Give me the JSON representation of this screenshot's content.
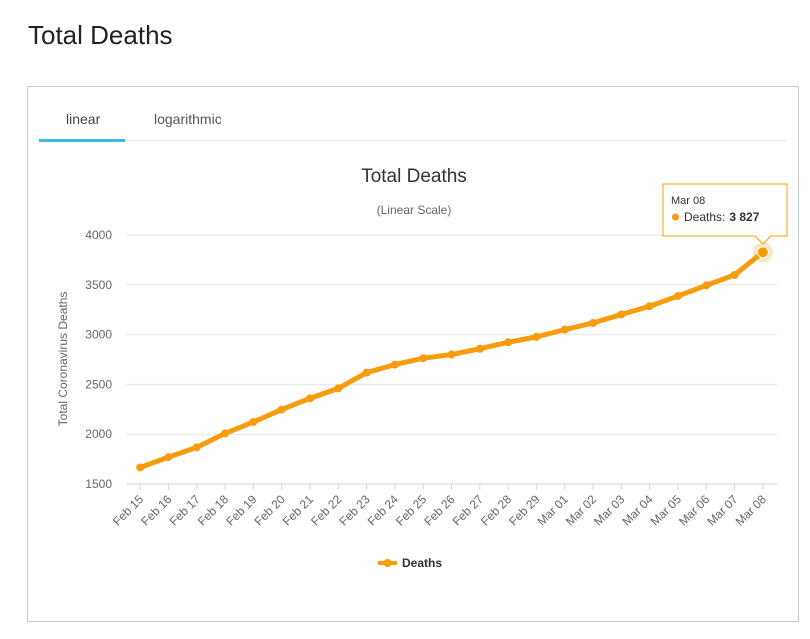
{
  "page": {
    "title": "Total Deaths"
  },
  "tabs": [
    {
      "label": "linear",
      "active": true
    },
    {
      "label": "logarithmic",
      "active": false
    }
  ],
  "colors": {
    "series": "#f89c0e",
    "tab_active": "#3db9e6",
    "grid": "#e6e6e6"
  },
  "chart_data": {
    "type": "line",
    "title": "Total Deaths",
    "subtitle": "(Linear Scale)",
    "xlabel": "",
    "ylabel": "Total Coronavirus Deaths",
    "categories": [
      "Feb 15",
      "Feb 16",
      "Feb 17",
      "Feb 18",
      "Feb 19",
      "Feb 20",
      "Feb 21",
      "Feb 22",
      "Feb 23",
      "Feb 24",
      "Feb 25",
      "Feb 26",
      "Feb 27",
      "Feb 28",
      "Feb 29",
      "Mar 01",
      "Mar 02",
      "Mar 03",
      "Mar 04",
      "Mar 05",
      "Mar 06",
      "Mar 07",
      "Mar 08"
    ],
    "series": [
      {
        "name": "Deaths",
        "values": [
          1666,
          1770,
          1868,
          2008,
          2123,
          2247,
          2360,
          2460,
          2618,
          2699,
          2763,
          2800,
          2858,
          2923,
          2977,
          3050,
          3117,
          3202,
          3285,
          3387,
          3494,
          3599,
          3827
        ]
      }
    ],
    "ylim": [
      1500,
      4000
    ],
    "yticks": [
      1500,
      2000,
      2500,
      3000,
      3500,
      4000
    ],
    "grid": true,
    "legend": "bottom-center",
    "tooltip": {
      "date": "Mar 08",
      "label": "Deaths:",
      "value": "3 827"
    }
  }
}
